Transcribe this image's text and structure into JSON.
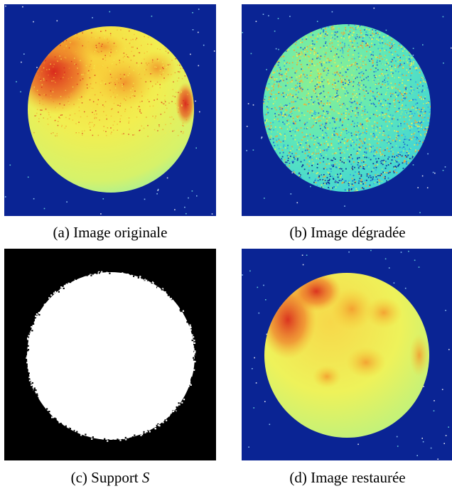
{
  "figure": {
    "panels": [
      {
        "id": "a",
        "caption": "(a) Image originale",
        "colormap": "jet"
      },
      {
        "id": "b",
        "caption": "(b) Image dégradée",
        "colormap": "jet"
      },
      {
        "id": "c",
        "caption_prefix": "(c) Support ",
        "caption_math": "S",
        "colormap": "binary"
      },
      {
        "id": "d",
        "caption": "(d) Image restaurée",
        "colormap": "jet"
      }
    ]
  },
  "colors": {
    "background_blue": "#0a2494",
    "disk_yellow": "#f2f25a",
    "disk_orange": "#f7a22e",
    "disk_red": "#d8201a",
    "disk_cyan": "#8ef0ae",
    "degraded_teal": "#4fe3c7",
    "support_black": "#000000",
    "support_white": "#ffffff"
  }
}
